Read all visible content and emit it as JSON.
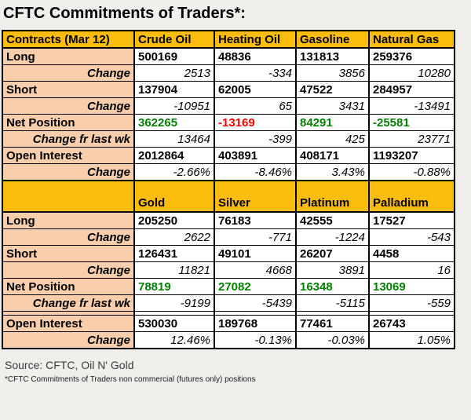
{
  "title": "CFTC Commitments of Traders*:",
  "source": "Source: CFTC, Oil N' Gold",
  "footnote": "*CFTC Commitments of Traders non commercial (futures only) positions",
  "colors": {
    "header_bg": "#fbbd0d",
    "label_bg": "#f8cead",
    "positive_green": "#008000",
    "negative_red": "#ff0000"
  },
  "sections": [
    {
      "header": [
        "Contracts (Mar 12)",
        "Crude Oil",
        "Heating Oil",
        "Gasoline",
        "Natural Gas"
      ],
      "rows": [
        {
          "label": "Long",
          "values": [
            "500169",
            "48836",
            "131813",
            "259376"
          ]
        },
        {
          "label": "Change",
          "values": [
            "2513",
            "-334",
            "3856",
            "10280"
          ]
        },
        {
          "label": "Short",
          "values": [
            "137904",
            "62005",
            "47522",
            "284957"
          ]
        },
        {
          "label": "Change",
          "values": [
            "-10951",
            "65",
            "3431",
            "-13491"
          ]
        },
        {
          "label": "Net Position",
          "values": [
            "362265",
            "-13169",
            "84291",
            "-25581"
          ],
          "styles": [
            "color:#008000",
            "color:#ff0000",
            "color:#008000",
            "color:#008000"
          ]
        },
        {
          "label": "Change fr last wk",
          "values": [
            "13464",
            "-399",
            "425",
            "23771"
          ]
        },
        {
          "label": "Open Interest",
          "values": [
            "2012864",
            "403891",
            "408171",
            "1193207"
          ]
        },
        {
          "label": "Change",
          "values": [
            "-2.66%",
            "-8.46%",
            "3.43%",
            "-0.88%"
          ]
        }
      ]
    },
    {
      "header": [
        "",
        "Gold",
        "Silver",
        "Platinum",
        "Palladium"
      ],
      "rows": [
        {
          "label": "Long",
          "values": [
            "205250",
            "76183",
            "42555",
            "17527"
          ]
        },
        {
          "label": "Change",
          "values": [
            "2622",
            "-771",
            "-1224",
            "-543"
          ]
        },
        {
          "label": "Short",
          "values": [
            "126431",
            "49101",
            "26207",
            "4458"
          ]
        },
        {
          "label": "Change",
          "values": [
            "11821",
            "4668",
            "3891",
            "16"
          ]
        },
        {
          "label": "Net Position",
          "values": [
            "78819",
            "27082",
            "16348",
            "13069"
          ],
          "styles": [
            "color:#008000",
            "color:#008000",
            "color:#008000",
            "color:#008000"
          ]
        },
        {
          "label": "Change fr last wk",
          "values": [
            "-9199",
            "-5439",
            "-5115",
            "-559"
          ]
        },
        {
          "label": "Open Interest",
          "values": [
            "530030",
            "189768",
            "77461",
            "26743"
          ]
        },
        {
          "label": "Change",
          "values": [
            "12.46%",
            "-0.13%",
            "-0.03%",
            "1.05%"
          ]
        }
      ]
    }
  ]
}
